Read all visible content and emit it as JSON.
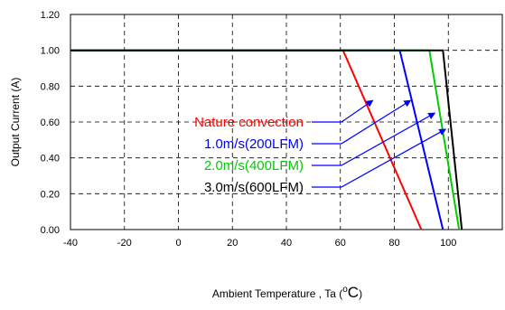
{
  "chart_data": {
    "type": "line",
    "xlabel": "Ambient Temperature , Ta (",
    "xlabel_unit": "oC",
    "xlabel_close": ")",
    "ylabel": "Output Current (A)",
    "xlim": [
      -40,
      120
    ],
    "ylim": [
      0,
      1.2
    ],
    "x_ticks": [
      -40,
      -20,
      0,
      20,
      40,
      60,
      80,
      100
    ],
    "x_tick_labels": [
      "-40",
      "-20",
      "0",
      "20",
      "40",
      "60",
      "80",
      "100"
    ],
    "y_ticks": [
      0,
      0.2,
      0.4,
      0.6,
      0.8,
      1.0,
      1.2
    ],
    "y_tick_labels": [
      "0.00",
      "0.20",
      "0.40",
      "0.60",
      "0.80",
      "1.00",
      "1.20"
    ],
    "grid": "dashed",
    "legend_position": "center",
    "series": [
      {
        "name": "Nature convection",
        "color": "#ff0000",
        "x": [
          -40,
          61,
          90
        ],
        "y": [
          1.0,
          1.0,
          0.0
        ],
        "arrow_to": [
          72,
          0.72
        ]
      },
      {
        "name": "1.0m/s(200LFM)",
        "color": "#0000ff",
        "x": [
          -40,
          82,
          98
        ],
        "y": [
          1.0,
          1.0,
          0.0
        ],
        "arrow_to": [
          86,
          0.72
        ]
      },
      {
        "name": "2.0m/s(400LFM)",
        "color": "#00cc00",
        "x": [
          -40,
          93,
          104
        ],
        "y": [
          1.0,
          1.0,
          0.0
        ],
        "arrow_to": [
          95,
          0.65
        ]
      },
      {
        "name": "3.0m/s(600LFM)",
        "color": "#000000",
        "x": [
          -40,
          98,
          105
        ],
        "y": [
          1.0,
          1.0,
          0.0
        ],
        "arrow_to": [
          99,
          0.56
        ]
      }
    ]
  }
}
